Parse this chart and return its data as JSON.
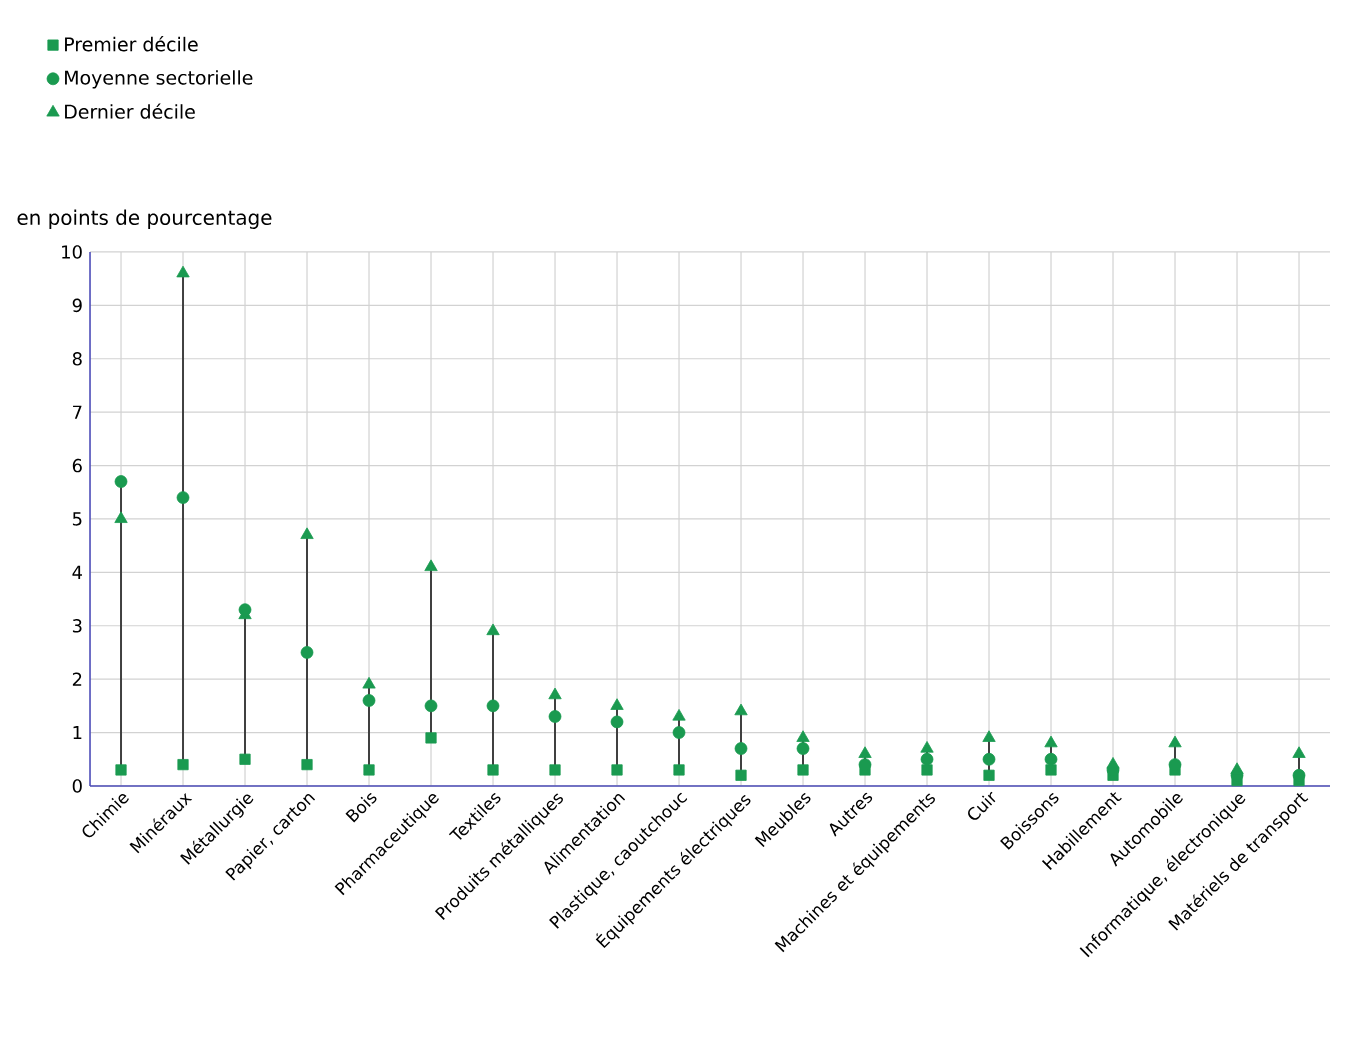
{
  "chart_data": {
    "type": "scatter",
    "ylabel": "en points de pourcentage",
    "categories": [
      "Chimie",
      "Minéraux",
      "Métallurgie",
      "Papier, carton",
      "Bois",
      "Pharmaceutique",
      "Textiles",
      "Produits métalliques",
      "Alimentation",
      "Plastique, caoutchouc",
      "Équipements électriques",
      "Meubles",
      "Autres",
      "Machines et équipements",
      "Cuir",
      "Boissons",
      "Habillement",
      "Automobile",
      "Informatique, électronique",
      "Matériels de transport"
    ],
    "series": [
      {
        "name": "Premier décile",
        "color": "#1a9a50",
        "marker": "square",
        "values": [
          0.3,
          0.4,
          0.5,
          0.4,
          0.3,
          0.9,
          0.3,
          0.3,
          0.3,
          0.3,
          0.2,
          0.3,
          0.3,
          0.3,
          0.2,
          0.3,
          0.2,
          0.3,
          0.1,
          0.1
        ]
      },
      {
        "name": "Moyenne sectorielle",
        "color": "#1a9a50",
        "marker": "circle",
        "values": [
          5.7,
          5.4,
          3.3,
          2.5,
          1.6,
          1.5,
          1.5,
          1.3,
          1.2,
          1.0,
          0.7,
          0.7,
          0.4,
          0.5,
          0.5,
          0.5,
          0.3,
          0.4,
          0.2,
          0.2
        ]
      },
      {
        "name": "Dernier décile",
        "color": "#1a9a50",
        "marker": "triangle",
        "values": [
          5.0,
          9.6,
          3.2,
          4.7,
          1.9,
          4.1,
          2.9,
          1.7,
          1.5,
          1.3,
          1.4,
          0.9,
          0.6,
          0.7,
          0.9,
          0.8,
          0.4,
          0.8,
          0.3,
          0.6
        ]
      }
    ],
    "ylim": [
      0,
      10
    ],
    "yticks": [
      0,
      1,
      2,
      3,
      4,
      5,
      6,
      7,
      8,
      9,
      10
    ],
    "grid": true,
    "legend": "top left"
  }
}
